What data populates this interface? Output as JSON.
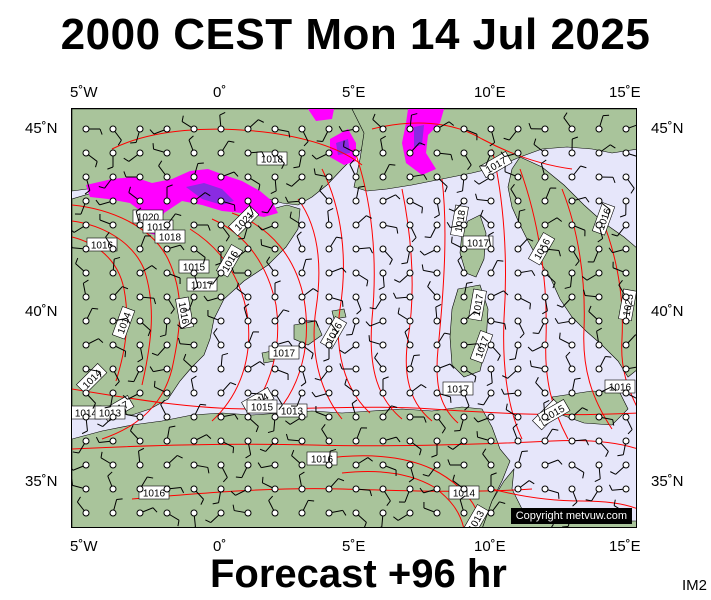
{
  "title": "2000 CEST Mon 14 Jul 2025",
  "subtitle": "Forecast +96 hr",
  "corner_code": "IM2",
  "copyright": "Copyright metvuw.com",
  "axes": {
    "top_lon": [
      "5˚W",
      "0˚",
      "5˚E",
      "10˚E",
      "15˚E"
    ],
    "bottom_lon": [
      "5˚W",
      "0˚",
      "5˚E",
      "10˚E",
      "15˚E"
    ],
    "left_lat": [
      "45˚N",
      "40˚N",
      "35˚N"
    ],
    "right_lat": [
      "45˚N",
      "40˚N",
      "35˚N"
    ]
  },
  "colors": {
    "sea": "#e6e6fa",
    "land": "#a9c49b",
    "isobar": "#ff0000",
    "precip_light": "#ff00ff",
    "precip_heavy": "#8a2be2"
  },
  "isobar_labels": [
    "1018",
    "1017",
    "1020",
    "1019",
    "1018",
    "1021",
    "1016",
    "1015",
    "1016",
    "1017",
    "1014",
    "1016",
    "1016",
    "1017",
    "1014",
    "1017",
    "1018",
    "1017",
    "1016",
    "1017",
    "1014",
    "1017",
    "1015",
    "1013",
    "1016",
    "1014",
    "1013",
    "1016",
    "1015",
    "1016",
    "1017",
    "1014",
    "1013",
    "1025",
    "1016",
    "1015"
  ]
}
